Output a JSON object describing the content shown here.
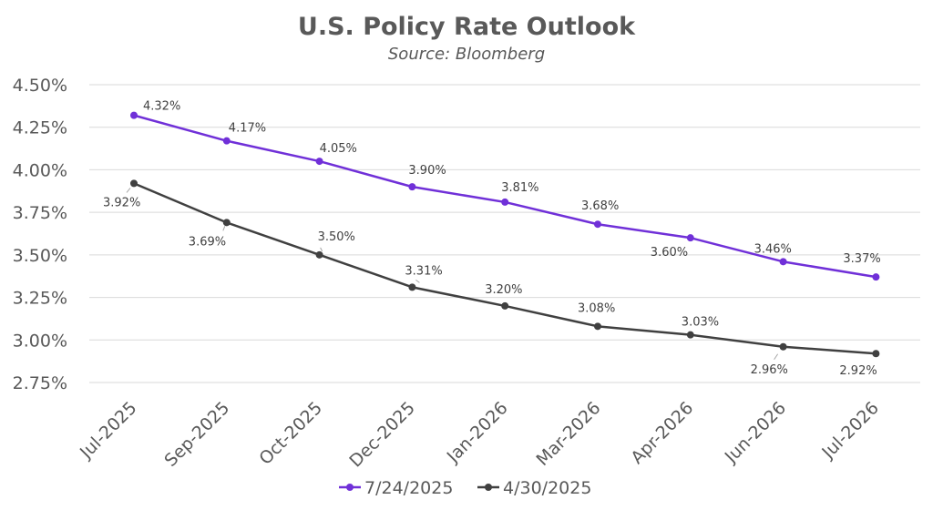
{
  "chart_data": {
    "type": "line",
    "title": "U.S. Policy Rate Outlook",
    "subtitle": "Source: Bloomberg",
    "categories": [
      "Jul-2025",
      "Sep-2025",
      "Oct-2025",
      "Dec-2025",
      "Jan-2026",
      "Mar-2026",
      "Apr-2026",
      "Jun-2026",
      "Jul-2026"
    ],
    "series": [
      {
        "name": "7/24/2025",
        "color": "#7030d8",
        "values": [
          4.32,
          4.17,
          4.05,
          3.9,
          3.81,
          3.68,
          3.6,
          3.46,
          3.37
        ],
        "labels": [
          "4.32%",
          "4.17%",
          "4.05%",
          "3.90%",
          "3.81%",
          "3.68%",
          "3.60%",
          "3.46%",
          "3.37%"
        ]
      },
      {
        "name": "4/30/2025",
        "color": "#404040",
        "values": [
          3.92,
          3.69,
          3.5,
          3.31,
          3.2,
          3.08,
          3.03,
          2.96,
          2.92
        ],
        "labels": [
          "3.92%",
          "3.69%",
          "3.50%",
          "3.31%",
          "3.20%",
          "3.08%",
          "3.03%",
          "2.96%",
          "2.92%"
        ]
      }
    ],
    "ylim": [
      2.75,
      4.5
    ],
    "yticks": [
      "2.75%",
      "3.00%",
      "3.25%",
      "3.50%",
      "3.75%",
      "4.00%",
      "4.25%",
      "4.50%"
    ],
    "ytick_values": [
      2.75,
      3.0,
      3.25,
      3.5,
      3.75,
      4.0,
      4.25,
      4.5
    ],
    "grid": true,
    "legend_position": "bottom"
  }
}
